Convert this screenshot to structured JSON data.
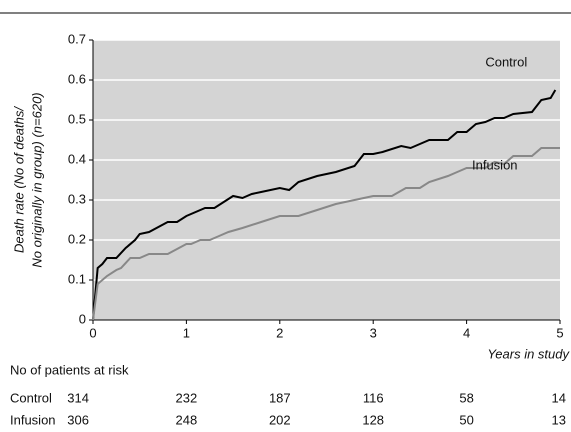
{
  "chart_data": {
    "type": "line",
    "y_label": [
      "Death rate (No of deaths/",
      "No originally in group) (n=620)"
    ],
    "x_label": "Years in study",
    "xlim": [
      0,
      5
    ],
    "xticks": [
      0,
      1,
      2,
      3,
      4,
      5
    ],
    "ylim": [
      0,
      0.7
    ],
    "yticks": [
      0,
      0.1,
      0.2,
      0.3,
      0.4,
      0.5,
      0.6,
      0.7
    ],
    "grid": true,
    "series": [
      {
        "name": "Control",
        "color": "#000000",
        "x": [
          0,
          0.05,
          0.1,
          0.15,
          0.25,
          0.35,
          0.45,
          0.5,
          0.6,
          0.8,
          0.9,
          1.0,
          1.2,
          1.3,
          1.5,
          1.6,
          1.7,
          1.8,
          2.0,
          2.1,
          2.2,
          2.4,
          2.6,
          2.8,
          2.9,
          3.0,
          3.1,
          3.3,
          3.4,
          3.6,
          3.8,
          3.9,
          4.0,
          4.1,
          4.2,
          4.3,
          4.4,
          4.5,
          4.7,
          4.8,
          4.9,
          4.95
        ],
        "values": [
          0,
          0.13,
          0.14,
          0.155,
          0.155,
          0.18,
          0.2,
          0.215,
          0.22,
          0.245,
          0.245,
          0.26,
          0.28,
          0.28,
          0.31,
          0.305,
          0.315,
          0.32,
          0.33,
          0.325,
          0.345,
          0.36,
          0.37,
          0.385,
          0.415,
          0.415,
          0.42,
          0.435,
          0.43,
          0.45,
          0.45,
          0.47,
          0.47,
          0.49,
          0.495,
          0.505,
          0.505,
          0.515,
          0.52,
          0.55,
          0.555,
          0.575
        ]
      },
      {
        "name": "Infusion",
        "color": "#888888",
        "x": [
          0,
          0.05,
          0.15,
          0.25,
          0.3,
          0.4,
          0.5,
          0.6,
          0.8,
          1.0,
          1.05,
          1.15,
          1.25,
          1.35,
          1.45,
          1.6,
          1.8,
          2.0,
          2.2,
          2.4,
          2.6,
          2.7,
          2.9,
          3.0,
          3.2,
          3.35,
          3.5,
          3.6,
          3.8,
          3.9,
          4.0,
          4.2,
          4.3,
          4.4,
          4.5,
          4.7,
          4.8,
          5.0
        ],
        "values": [
          0,
          0.09,
          0.11,
          0.125,
          0.13,
          0.155,
          0.155,
          0.165,
          0.165,
          0.19,
          0.19,
          0.2,
          0.2,
          0.21,
          0.22,
          0.23,
          0.245,
          0.26,
          0.26,
          0.275,
          0.29,
          0.295,
          0.305,
          0.31,
          0.31,
          0.33,
          0.33,
          0.345,
          0.36,
          0.37,
          0.38,
          0.38,
          0.395,
          0.39,
          0.41,
          0.41,
          0.43,
          0.43
        ]
      }
    ],
    "risk_table": {
      "title": "No of patients at risk",
      "rows": [
        {
          "name": "Control",
          "values": [
            314,
            232,
            187,
            116,
            58,
            14
          ]
        },
        {
          "name": "Infusion",
          "values": [
            306,
            248,
            202,
            128,
            50,
            13
          ]
        }
      ]
    }
  }
}
